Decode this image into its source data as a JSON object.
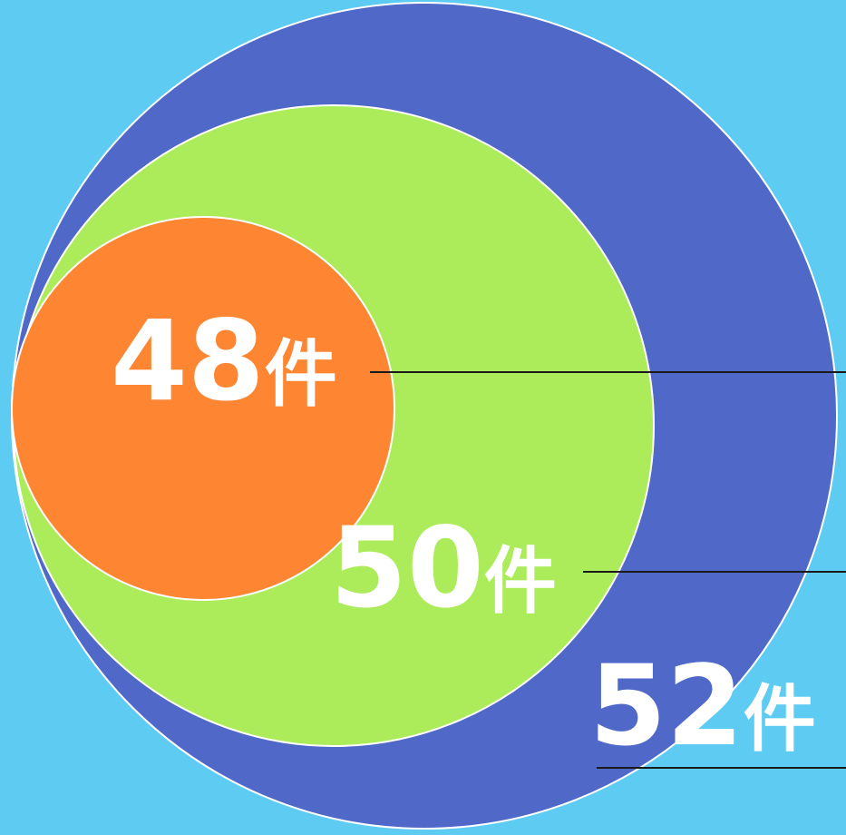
{
  "chart_data": {
    "type": "nested-circle",
    "title": "",
    "series": [
      {
        "label": "52件",
        "value": 52,
        "color": "#5068c8"
      },
      {
        "label": "50件",
        "value": 50,
        "color": "#acec5a"
      },
      {
        "label": "48件",
        "value": 48,
        "color": "#fe8632"
      }
    ]
  },
  "colors": {
    "background": "#5ecbf2",
    "outline": "#ffffff",
    "leader": "#1a1a1a",
    "text": "#ffffff"
  }
}
